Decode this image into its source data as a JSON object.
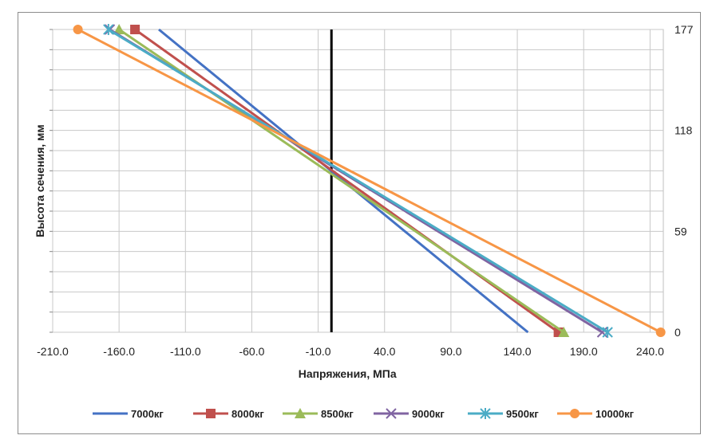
{
  "chart_data": {
    "type": "line",
    "title": "",
    "xlabel": "Напряжения, МПа",
    "ylabel": "Высота сечения, мм",
    "xlim": [
      -210,
      250
    ],
    "ylim": [
      0,
      177
    ],
    "x_ticks": [
      -210,
      -160,
      -110,
      -60,
      -10,
      40,
      90,
      140,
      190,
      240
    ],
    "x_tick_labels": [
      "-210.0",
      "-160.0",
      "-110.0",
      "-60.0",
      "-10.0",
      "40.0",
      "90.0",
      "140.0",
      "190.0",
      "240.0"
    ],
    "y_ticks_right": [
      0,
      59,
      118,
      177
    ],
    "y_tick_labels": [
      "0",
      "59",
      "118",
      "177"
    ],
    "grid": true,
    "legend_position": "bottom",
    "vertical_line_x": 0,
    "series": [
      {
        "name": "7000кг",
        "color": "#4472c4",
        "marker": "none",
        "points": [
          [
            -130,
            177
          ],
          [
            148,
            0
          ]
        ]
      },
      {
        "name": "8000кг",
        "color": "#c0504d",
        "marker": "square",
        "points": [
          [
            -148,
            177
          ],
          [
            171,
            0
          ]
        ]
      },
      {
        "name": "8500кг",
        "color": "#9bbb59",
        "marker": "triangle",
        "points": [
          [
            -160,
            177
          ],
          [
            175,
            0
          ]
        ]
      },
      {
        "name": "9000кг",
        "color": "#8064a2",
        "marker": "x",
        "points": [
          [
            -167,
            177
          ],
          [
            204,
            0
          ]
        ]
      },
      {
        "name": "9500кг",
        "color": "#4bacc6",
        "marker": "star",
        "points": [
          [
            -168,
            177
          ],
          [
            208,
            0
          ]
        ]
      },
      {
        "name": "10000кг",
        "color": "#f79646",
        "marker": "circle",
        "points": [
          [
            -191,
            177
          ],
          [
            248,
            0
          ]
        ]
      }
    ]
  }
}
